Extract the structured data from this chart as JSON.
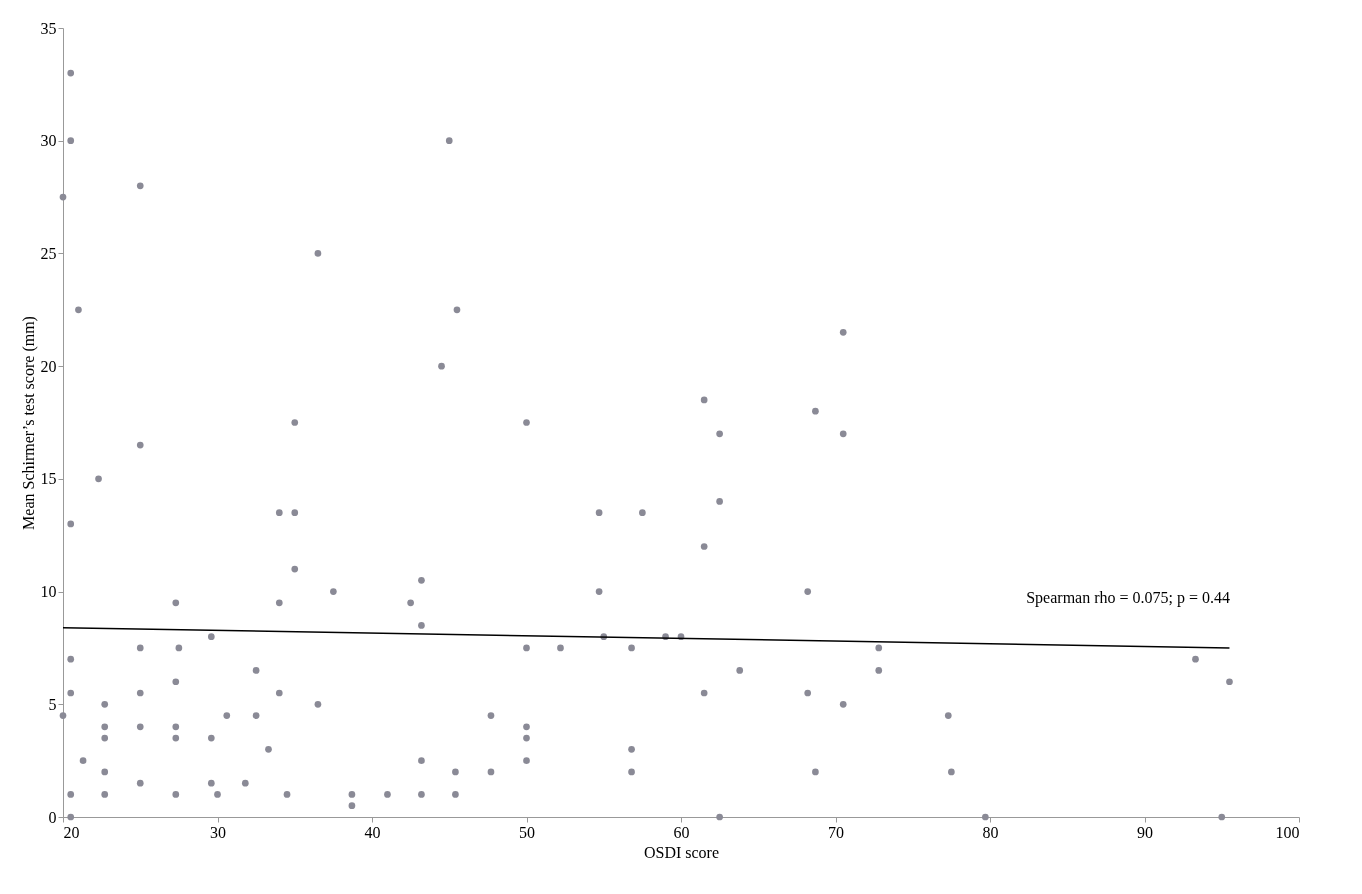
{
  "chart_data": {
    "type": "scatter",
    "xlabel": "OSDI score",
    "ylabel": "Mean Schirmer’s test score (mm)",
    "xlim": [
      20,
      100
    ],
    "xticks": [
      20,
      30,
      40,
      50,
      60,
      70,
      80,
      90,
      100
    ],
    "ylim": [
      0,
      35
    ],
    "yticks": [
      0,
      5,
      10,
      15,
      20,
      25,
      30,
      35
    ],
    "grid": false,
    "marker": "circle",
    "annotations": [
      "Spearman rho = 0.075; p = 0.44"
    ],
    "series": [
      {
        "color": "#8a8a96",
        "x": [
          20.5,
          20.5,
          20,
          25,
          45,
          36.5,
          21,
          45.5,
          44.5,
          70.5,
          50,
          35,
          61.5,
          68.7,
          70.5,
          62.5,
          25,
          22.3,
          20.5,
          34,
          35,
          54.7,
          57.5,
          62.5,
          61.5,
          35,
          43.2,
          37.5,
          54.7,
          68.2,
          27.3,
          34,
          42.5,
          43.2,
          59,
          60,
          55,
          29.6,
          25,
          27.5,
          50,
          52.2,
          56.8,
          72.8,
          93.3,
          20.5,
          27.3,
          32.5,
          63.8,
          72.8,
          95.5,
          20.5,
          25,
          34,
          61.5,
          68.2,
          22.7,
          36.5,
          70.5,
          20,
          30.6,
          32.5,
          47.7,
          77.3,
          22.7,
          25,
          27.3,
          50,
          22.7,
          27.3,
          29.6,
          50,
          33.3,
          56.8,
          21.3,
          43.2,
          50,
          22.7,
          45.4,
          47.7,
          56.8,
          68.7,
          77.5,
          25,
          29.6,
          31.8,
          20.5,
          22.7,
          27.3,
          30,
          34.5,
          38.7,
          41,
          43.2,
          45.4,
          38.7,
          20.5,
          62.5,
          79.7,
          95
        ],
        "values": [
          33,
          30,
          27.5,
          28,
          30,
          25,
          22.5,
          22.5,
          20,
          21.5,
          17.5,
          17.5,
          18.5,
          18,
          17,
          17,
          16.5,
          15,
          13,
          13.5,
          13.5,
          13.5,
          13.5,
          14,
          12,
          11,
          10.5,
          10,
          10,
          10,
          9.5,
          9.5,
          9.5,
          8.5,
          8,
          8,
          8,
          8,
          7.5,
          7.5,
          7.5,
          7.5,
          7.5,
          7.5,
          7,
          7,
          6,
          6.5,
          6.5,
          6.5,
          6,
          5.5,
          5.5,
          5.5,
          5.5,
          5.5,
          5,
          5,
          5,
          4.5,
          4.5,
          4.5,
          4.5,
          4.5,
          4,
          4,
          4,
          4,
          3.5,
          3.5,
          3.5,
          3.5,
          3,
          3,
          2.5,
          2.5,
          2.5,
          2,
          2,
          2,
          2,
          2,
          2,
          1.5,
          1.5,
          1.5,
          1,
          1,
          1,
          1,
          1,
          1,
          1,
          1,
          1,
          0.5,
          0,
          0,
          0,
          0
        ]
      },
      {
        "type": "line",
        "color": "#000000",
        "line_style": "solid",
        "marker": "none",
        "x": [
          20,
          95.5
        ],
        "values": [
          8.4,
          7.5
        ]
      }
    ]
  }
}
